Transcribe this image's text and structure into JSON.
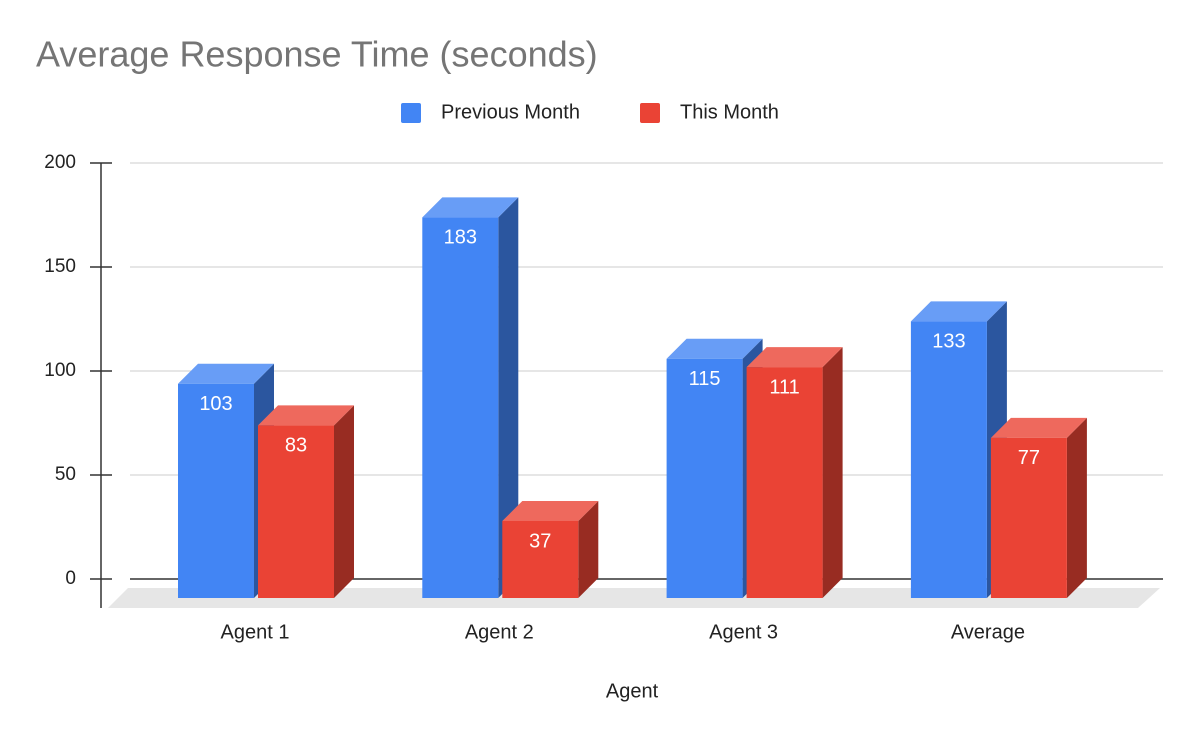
{
  "chart_data": {
    "type": "bar3d",
    "title": "Average Response Time (seconds)",
    "x_label": "Agent",
    "categories": [
      "Agent 1",
      "Agent 2",
      "Agent 3",
      "Average"
    ],
    "series": [
      {
        "name": "Previous Month",
        "color": "#4285f4",
        "values": [
          103,
          183,
          115,
          133
        ]
      },
      {
        "name": "This Month",
        "color": "#ea4335",
        "values": [
          83,
          37,
          111,
          77
        ]
      }
    ],
    "ylim": [
      0,
      200
    ],
    "yticks": [
      0,
      50,
      100,
      150,
      200
    ],
    "grid": true,
    "legend": "top"
  }
}
